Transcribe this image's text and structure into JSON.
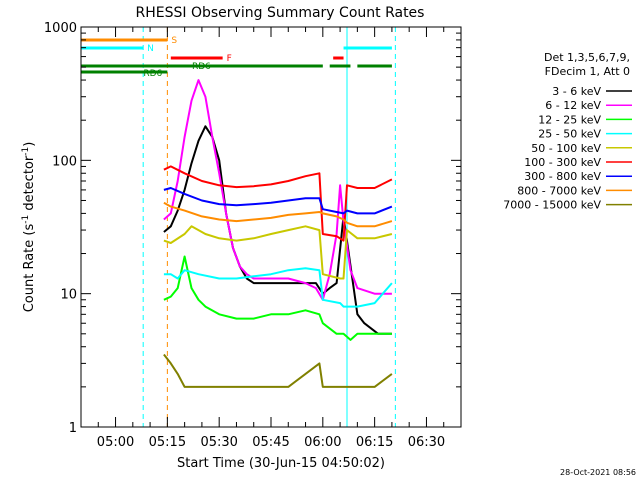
{
  "chart_data": {
    "type": "line",
    "title": "RHESSI Observing Summary Count Rates",
    "xlabel": "Start Time (30-Jun-15 04:50:02)",
    "ylabel_main": "Count Rate (s",
    "ylabel_sup1": "-1",
    "ylabel_mid": " detector",
    "ylabel_sup2": "-1",
    "ylabel_end": ")",
    "y_scale": "log",
    "ylim": [
      1,
      1000
    ],
    "y_ticks": [
      {
        "v": 1,
        "label": "1"
      },
      {
        "v": 10,
        "label": "10"
      },
      {
        "v": 100,
        "label": "100"
      },
      {
        "v": 1000,
        "label": "1000"
      }
    ],
    "x_range_min": [
      -10,
      100
    ],
    "x_ticks": [
      {
        "v": 0,
        "label": "05:00"
      },
      {
        "v": 15,
        "label": "05:15"
      },
      {
        "v": 30,
        "label": "05:30"
      },
      {
        "v": 45,
        "label": "05:45"
      },
      {
        "v": 60,
        "label": "06:00"
      },
      {
        "v": 75,
        "label": "06:15"
      },
      {
        "v": 90,
        "label": "06:30"
      }
    ],
    "legend_header": [
      "Det 1,3,5,6,7,9,",
      "FDecim 1, Att 0"
    ],
    "series": [
      {
        "name": "3 - 6 keV",
        "color": "#000000",
        "pts": [
          [
            14,
            29
          ],
          [
            16,
            32
          ],
          [
            18,
            42
          ],
          [
            20,
            60
          ],
          [
            22,
            95
          ],
          [
            24,
            140
          ],
          [
            26,
            180
          ],
          [
            28,
            150
          ],
          [
            30,
            100
          ],
          [
            32,
            40
          ],
          [
            34,
            22
          ],
          [
            36,
            16
          ],
          [
            38,
            13
          ],
          [
            40,
            12
          ],
          [
            45,
            12
          ],
          [
            50,
            12
          ],
          [
            55,
            12
          ],
          [
            58,
            12
          ],
          [
            60,
            10
          ],
          [
            62,
            11
          ],
          [
            64,
            12
          ],
          [
            66,
            38
          ],
          [
            70,
            7
          ],
          [
            72,
            6
          ],
          [
            76,
            5
          ],
          [
            78,
            5
          ],
          [
            80,
            5
          ]
        ]
      },
      {
        "name": "6 - 12 keV",
        "color": "#ff00ff",
        "pts": [
          [
            14,
            36
          ],
          [
            16,
            40
          ],
          [
            18,
            70
          ],
          [
            20,
            150
          ],
          [
            22,
            280
          ],
          [
            24,
            400
          ],
          [
            26,
            300
          ],
          [
            28,
            150
          ],
          [
            30,
            80
          ],
          [
            32,
            40
          ],
          [
            34,
            22
          ],
          [
            36,
            16
          ],
          [
            38,
            14
          ],
          [
            40,
            13
          ],
          [
            45,
            13
          ],
          [
            50,
            13
          ],
          [
            55,
            12
          ],
          [
            58,
            11
          ],
          [
            60,
            9
          ],
          [
            62,
            14
          ],
          [
            64,
            28
          ],
          [
            65,
            65
          ],
          [
            66,
            35
          ],
          [
            68,
            15
          ],
          [
            70,
            11
          ],
          [
            75,
            10
          ],
          [
            80,
            10
          ]
        ]
      },
      {
        "name": "12 - 25 keV",
        "color": "#00ff00",
        "pts": [
          [
            14,
            9
          ],
          [
            16,
            9.5
          ],
          [
            18,
            11
          ],
          [
            20,
            19
          ],
          [
            22,
            11
          ],
          [
            24,
            9
          ],
          [
            26,
            8
          ],
          [
            30,
            7
          ],
          [
            35,
            6.5
          ],
          [
            40,
            6.5
          ],
          [
            45,
            7
          ],
          [
            50,
            7
          ],
          [
            55,
            7.5
          ],
          [
            59,
            7
          ],
          [
            60,
            6
          ],
          [
            64,
            5
          ],
          [
            66,
            5
          ],
          [
            68,
            4.5
          ],
          [
            70,
            5
          ],
          [
            75,
            5
          ],
          [
            80,
            5
          ]
        ]
      },
      {
        "name": "25 - 50 keV",
        "color": "#00ffff",
        "pts": [
          [
            14,
            14
          ],
          [
            16,
            14
          ],
          [
            18,
            13
          ],
          [
            20,
            15
          ],
          [
            24,
            14
          ],
          [
            30,
            13
          ],
          [
            35,
            13
          ],
          [
            40,
            13.5
          ],
          [
            45,
            14
          ],
          [
            50,
            15
          ],
          [
            55,
            15.5
          ],
          [
            59,
            15
          ],
          [
            60,
            9
          ],
          [
            65,
            8.5
          ],
          [
            66,
            8
          ],
          [
            70,
            8
          ],
          [
            75,
            8.5
          ],
          [
            80,
            12
          ]
        ]
      },
      {
        "name": "50 - 100 keV",
        "color": "#c8c800",
        "pts": [
          [
            14,
            25
          ],
          [
            16,
            24
          ],
          [
            20,
            28
          ],
          [
            22,
            32
          ],
          [
            24,
            30
          ],
          [
            26,
            28
          ],
          [
            30,
            26
          ],
          [
            35,
            25
          ],
          [
            40,
            26
          ],
          [
            45,
            28
          ],
          [
            50,
            30
          ],
          [
            55,
            32
          ],
          [
            59,
            30
          ],
          [
            60,
            14
          ],
          [
            65,
            13
          ],
          [
            66,
            13
          ],
          [
            67,
            30
          ],
          [
            70,
            26
          ],
          [
            75,
            26
          ],
          [
            80,
            28
          ]
        ]
      },
      {
        "name": "100 - 300 keV",
        "color": "#ff0000",
        "pts": [
          [
            14,
            85
          ],
          [
            16,
            90
          ],
          [
            20,
            80
          ],
          [
            25,
            70
          ],
          [
            30,
            65
          ],
          [
            35,
            63
          ],
          [
            40,
            64
          ],
          [
            45,
            66
          ],
          [
            50,
            70
          ],
          [
            55,
            76
          ],
          [
            59,
            80
          ],
          [
            60,
            28
          ],
          [
            64,
            27
          ],
          [
            66,
            25
          ],
          [
            67,
            65
          ],
          [
            70,
            62
          ],
          [
            75,
            62
          ],
          [
            80,
            72
          ]
        ]
      },
      {
        "name": "300 - 800 keV",
        "color": "#0000ff",
        "pts": [
          [
            14,
            60
          ],
          [
            16,
            62
          ],
          [
            20,
            56
          ],
          [
            25,
            50
          ],
          [
            30,
            47
          ],
          [
            35,
            46
          ],
          [
            40,
            47
          ],
          [
            45,
            48
          ],
          [
            50,
            50
          ],
          [
            55,
            52
          ],
          [
            59,
            52
          ],
          [
            60,
            43
          ],
          [
            64,
            41
          ],
          [
            66,
            40
          ],
          [
            67,
            42
          ],
          [
            70,
            40
          ],
          [
            75,
            40
          ],
          [
            80,
            45
          ]
        ]
      },
      {
        "name": "800 - 7000 keV",
        "color": "#ff8c00",
        "pts": [
          [
            14,
            48
          ],
          [
            16,
            45
          ],
          [
            20,
            42
          ],
          [
            25,
            38
          ],
          [
            30,
            36
          ],
          [
            35,
            35
          ],
          [
            40,
            36
          ],
          [
            45,
            37
          ],
          [
            50,
            39
          ],
          [
            55,
            40
          ],
          [
            59,
            41
          ],
          [
            60,
            40
          ],
          [
            64,
            38
          ],
          [
            66,
            36
          ],
          [
            67,
            34
          ],
          [
            70,
            32
          ],
          [
            75,
            32
          ],
          [
            80,
            35
          ]
        ]
      },
      {
        "name": "7000 - 15000 keV",
        "color": "#808000",
        "pts": [
          [
            14,
            3.5
          ],
          [
            16,
            3
          ],
          [
            18,
            2.5
          ],
          [
            20,
            2
          ],
          [
            25,
            2
          ],
          [
            30,
            2
          ],
          [
            35,
            2
          ],
          [
            40,
            2
          ],
          [
            45,
            2
          ],
          [
            50,
            2
          ],
          [
            55,
            2.5
          ],
          [
            59,
            3
          ],
          [
            60,
            2
          ],
          [
            64,
            2
          ],
          [
            66,
            2
          ],
          [
            70,
            2
          ],
          [
            75,
            2
          ],
          [
            80,
            2.5
          ]
        ]
      }
    ],
    "flag_bars": [
      {
        "label": "S",
        "color": "#ff8c00",
        "segments": [
          [
            -10,
            15
          ]
        ]
      },
      {
        "label": "N",
        "color": "#00ffff",
        "segments": [
          [
            -10,
            8
          ],
          [
            66,
            80
          ]
        ]
      },
      {
        "label": "F",
        "color": "#ff0000",
        "segments": [
          [
            16,
            31
          ],
          [
            63,
            66
          ]
        ]
      },
      {
        "label": "RD6",
        "color": "#008000",
        "segments": [
          [
            -10,
            60
          ],
          [
            62,
            68
          ],
          [
            70,
            80
          ]
        ]
      },
      {
        "label": "RD6",
        "color": "#008000",
        "segments": [
          [
            -10,
            15
          ]
        ]
      }
    ],
    "vlines": [
      {
        "x": -10,
        "color": "#00ffff",
        "dash": false
      },
      {
        "x": 8,
        "color": "#00ffff",
        "dash": true
      },
      {
        "x": 15,
        "color": "#ff8c00",
        "dash": true
      },
      {
        "x": 67,
        "color": "#00ffff",
        "dash": false
      },
      {
        "x": 81,
        "color": "#00ffff",
        "dash": true
      }
    ],
    "timestamp": "28-Oct-2021 08:56"
  }
}
